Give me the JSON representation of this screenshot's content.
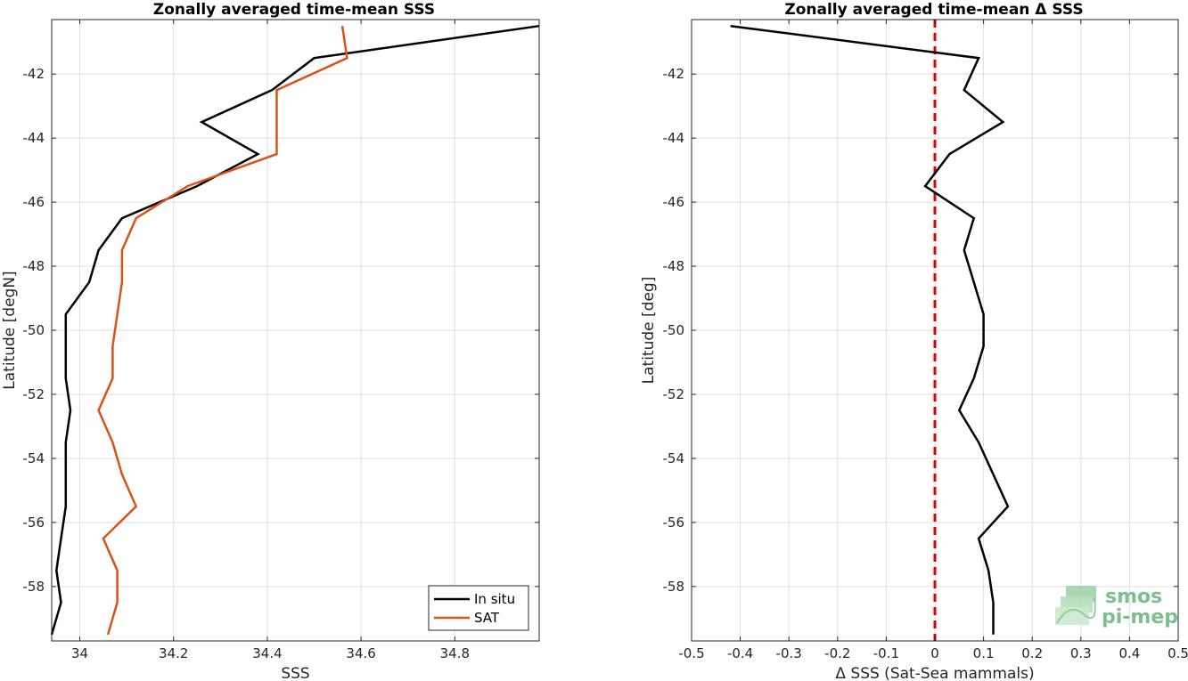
{
  "chart_data": [
    {
      "type": "line",
      "title": "Zonally averaged time-mean SSS",
      "xlabel": "SSS",
      "ylabel": "Latitude [degN]",
      "xlim": [
        33.94,
        34.98
      ],
      "ylim": [
        -59.7,
        -40.3
      ],
      "xticks": [
        34,
        34.2,
        34.4,
        34.6,
        34.8
      ],
      "yticks": [
        -58,
        -56,
        -54,
        -52,
        -50,
        -48,
        -46,
        -44,
        -42
      ],
      "grid": true,
      "legend": "bottom-right",
      "series": [
        {
          "name": "In situ",
          "color": "#000000",
          "x": [
            34.98,
            34.5,
            34.41,
            34.26,
            34.38,
            34.25,
            34.09,
            34.04,
            34.02,
            33.97,
            33.97,
            33.97,
            33.98,
            33.97,
            33.97,
            33.97,
            33.96,
            33.95,
            33.96,
            33.94
          ],
          "y": [
            -40.5,
            -41.5,
            -42.5,
            -43.5,
            -44.5,
            -45.5,
            -46.5,
            -47.5,
            -48.5,
            -49.5,
            -50.5,
            -51.5,
            -52.5,
            -53.5,
            -54.5,
            -55.5,
            -56.5,
            -57.5,
            -58.5,
            -59.5
          ]
        },
        {
          "name": "SAT",
          "color": "#d95319",
          "x": [
            34.56,
            34.57,
            34.42,
            34.42,
            34.42,
            34.23,
            34.12,
            34.09,
            34.09,
            34.08,
            34.07,
            34.07,
            34.04,
            34.07,
            34.09,
            34.12,
            34.05,
            34.08,
            34.08,
            34.06
          ],
          "y": [
            -40.5,
            -41.5,
            -42.5,
            -43.5,
            -44.5,
            -45.5,
            -46.5,
            -47.5,
            -48.5,
            -49.5,
            -50.5,
            -51.5,
            -52.5,
            -53.5,
            -54.5,
            -55.5,
            -56.5,
            -57.5,
            -58.5,
            -59.5
          ]
        }
      ]
    },
    {
      "type": "line",
      "title": "Zonally averaged time-mean Δ SSS",
      "xlabel": "Δ SSS (Sat-Sea mammals)",
      "ylabel": "Latitude [deg]",
      "xlim": [
        -0.5,
        0.5
      ],
      "ylim": [
        -59.7,
        -40.3
      ],
      "xticks": [
        -0.5,
        -0.4,
        -0.3,
        -0.2,
        -0.1,
        0,
        0.1,
        0.2,
        0.3,
        0.4,
        0.5
      ],
      "yticks": [
        -58,
        -56,
        -54,
        -52,
        -50,
        -48,
        -46,
        -44,
        -42
      ],
      "grid": true,
      "reference_line": {
        "x": 0,
        "color": "#e00000",
        "style": "dashed"
      },
      "series": [
        {
          "color": "#000000",
          "x": [
            -0.42,
            0.09,
            0.06,
            0.14,
            0.03,
            -0.02,
            0.08,
            0.06,
            0.08,
            0.1,
            0.1,
            0.08,
            0.05,
            0.09,
            0.12,
            0.15,
            0.09,
            0.11,
            0.12,
            0.12
          ],
          "y": [
            -40.5,
            -41.5,
            -42.5,
            -43.5,
            -44.5,
            -45.5,
            -46.5,
            -47.5,
            -48.5,
            -49.5,
            -50.5,
            -51.5,
            -52.5,
            -53.5,
            -54.5,
            -55.5,
            -56.5,
            -57.5,
            -58.5,
            -59.5
          ]
        }
      ]
    }
  ],
  "logo": {
    "name": "smos-pi-mep-logo",
    "line1": "smos",
    "line2": "pi-mep"
  }
}
